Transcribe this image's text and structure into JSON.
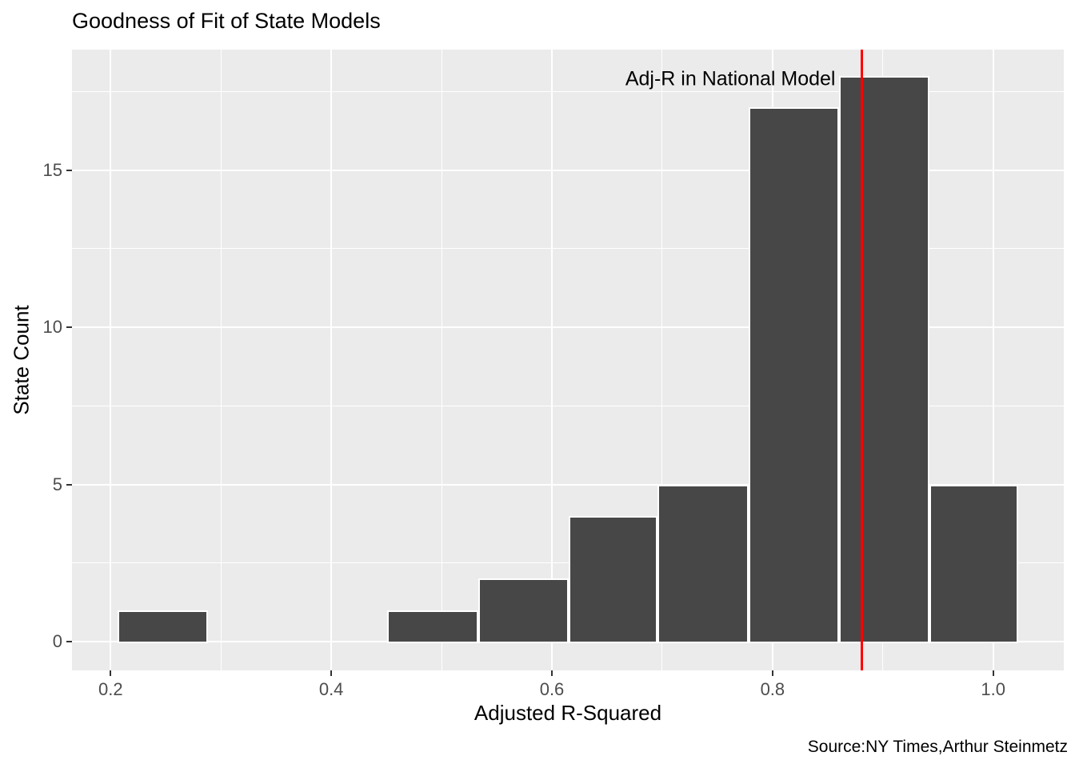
{
  "chart_data": {
    "type": "bar",
    "subtype": "histogram",
    "title": "Goodness of Fit of State Models",
    "xlabel": "Adjusted R-Squared",
    "ylabel": "State Count",
    "caption": "Source:NY Times,Arthur Steinmetz",
    "bin_edges": [
      0.206,
      0.288,
      0.369,
      0.451,
      0.533,
      0.615,
      0.696,
      0.778,
      0.86,
      0.942,
      1.023
    ],
    "counts": [
      1,
      0,
      0,
      1,
      2,
      4,
      5,
      17,
      18,
      5
    ],
    "x_ticks": [
      0.2,
      0.4,
      0.6,
      0.8,
      1.0
    ],
    "x_tick_labels": [
      "0.2",
      "0.4",
      "0.6",
      "0.8",
      "1.0"
    ],
    "x_minor_ticks": [
      0.3,
      0.5,
      0.7,
      0.9
    ],
    "y_ticks": [
      0,
      5,
      10,
      15
    ],
    "y_tick_labels": [
      "0",
      "5",
      "10",
      "15"
    ],
    "y_minor_ticks": [
      2.5,
      7.5,
      12.5,
      17.5
    ],
    "xlim": [
      0.165,
      1.064
    ],
    "ylim": [
      -0.92,
      18.84
    ],
    "grid": true,
    "legend": false,
    "vline": {
      "x": 0.881,
      "color": "#FF0000",
      "label": "Adj-R in National Model"
    },
    "annotation": {
      "text": "Adj-R in National Model",
      "x": 0.857,
      "y": 17.9,
      "align": "right"
    },
    "colors": {
      "bar_fill": "#474747",
      "bar_stroke": "#FFFFFF",
      "panel_bg": "#EBEBEB",
      "grid": "#FFFFFF",
      "tick_mark": "#333333",
      "tick_label": "#4D4D4D",
      "text": "#000000"
    }
  }
}
